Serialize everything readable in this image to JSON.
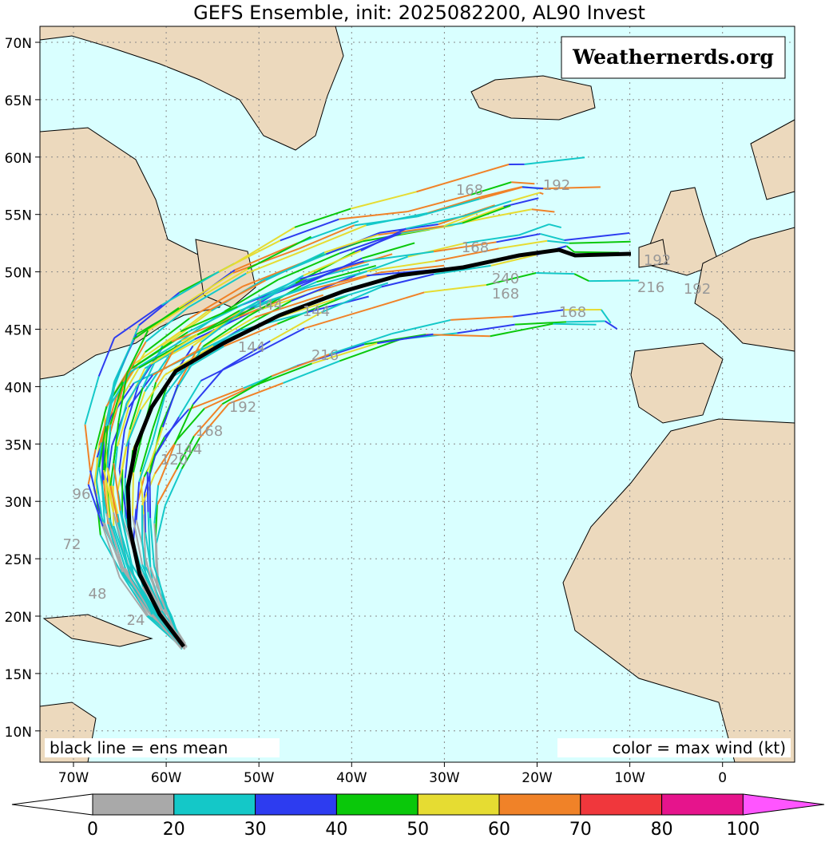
{
  "title": "GEFS Ensemble, init: 2025082200, AL90 Invest",
  "watermark": "Weathernerds.org",
  "notes": {
    "left": "black line = ens mean",
    "right": "color = max wind (kt)"
  },
  "lat_labels": [
    "70N",
    "65N",
    "60N",
    "55N",
    "50N",
    "45N",
    "40N",
    "35N",
    "30N",
    "25N",
    "20N",
    "15N",
    "10N"
  ],
  "lon_labels": [
    "70W",
    "60W",
    "50W",
    "40W",
    "30W",
    "20W",
    "10W",
    "0"
  ],
  "track_labels": [
    "168",
    "192",
    "144",
    "144",
    "216",
    "168",
    "240",
    "168",
    "192",
    "168",
    "216",
    "192",
    "144",
    "168",
    "192",
    "144",
    "120",
    "96",
    "72",
    "48",
    "24"
  ],
  "colorbar": {
    "labels": [
      0,
      20,
      30,
      40,
      50,
      60,
      70,
      80,
      100
    ],
    "colors": [
      "#ffffff",
      "#a9a9a9",
      "#14c8c8",
      "#2d3cf0",
      "#0ac80a",
      "#e6dc32",
      "#f08228",
      "#f0373c",
      "#e6148c",
      "#ff55ff"
    ]
  }
}
